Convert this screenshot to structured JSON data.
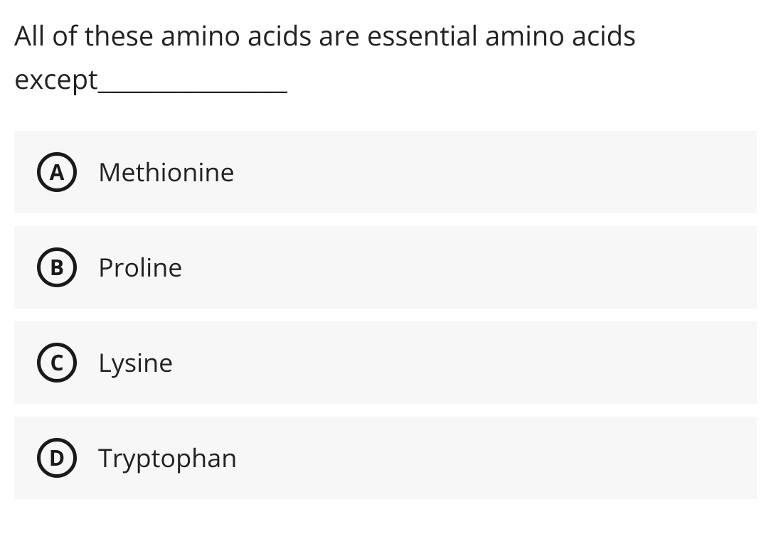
{
  "question": {
    "text": "All of these amino acids are essential amino acids except________________",
    "text_color": "#222222",
    "font_size": 38
  },
  "options": [
    {
      "letter": "A",
      "text": "Methionine"
    },
    {
      "letter": "B",
      "text": "Proline"
    },
    {
      "letter": "C",
      "text": "Lysine"
    },
    {
      "letter": "D",
      "text": "Tryptophan"
    }
  ],
  "styling": {
    "background_color": "#ffffff",
    "option_background": "#f7f7f7",
    "option_text_color": "#222222",
    "option_text_size": 36,
    "letter_border_color": "#1a1a1a",
    "letter_border_width": 5,
    "letter_size": 56,
    "letter_font_size": 30,
    "letter_font_weight": 700,
    "gap_between_options": 18
  }
}
